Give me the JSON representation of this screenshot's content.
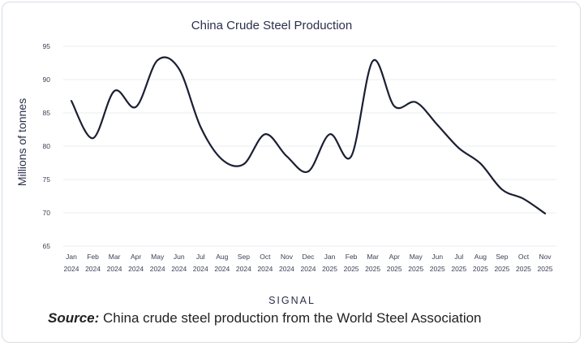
{
  "chart_data": {
    "type": "line",
    "title": "China Crude Steel Production",
    "ylabel": "Millions of tonnes",
    "xlabel": "",
    "ylim": [
      65,
      95
    ],
    "yticks": [
      65,
      70,
      75,
      80,
      85,
      90,
      95
    ],
    "grid": true,
    "categories": [
      {
        "month": "Jan",
        "year": "2024"
      },
      {
        "month": "Feb",
        "year": "2024"
      },
      {
        "month": "Mar",
        "year": "2024"
      },
      {
        "month": "Apr",
        "year": "2024"
      },
      {
        "month": "May",
        "year": "2024"
      },
      {
        "month": "Jun",
        "year": "2024"
      },
      {
        "month": "Jul",
        "year": "2024"
      },
      {
        "month": "Aug",
        "year": "2024"
      },
      {
        "month": "Sep",
        "year": "2024"
      },
      {
        "month": "Oct",
        "year": "2024"
      },
      {
        "month": "Nov",
        "year": "2024"
      },
      {
        "month": "Dec",
        "year": "2024"
      },
      {
        "month": "Jan",
        "year": "2025"
      },
      {
        "month": "Feb",
        "year": "2025"
      },
      {
        "month": "Mar",
        "year": "2025"
      },
      {
        "month": "Apr",
        "year": "2025"
      },
      {
        "month": "May",
        "year": "2025"
      },
      {
        "month": "Jun",
        "year": "2025"
      },
      {
        "month": "Jul",
        "year": "2025"
      },
      {
        "month": "Aug",
        "year": "2025"
      },
      {
        "month": "Sep",
        "year": "2025"
      },
      {
        "month": "Oct",
        "year": "2025"
      },
      {
        "month": "Nov",
        "year": "2025"
      }
    ],
    "series": [
      {
        "values": [
          86.8,
          81.2,
          88.3,
          85.9,
          92.9,
          91.6,
          82.9,
          78.0,
          77.3,
          81.8,
          78.5,
          76.2,
          81.8,
          78.5,
          92.8,
          86.0,
          86.6,
          83.2,
          79.7,
          77.4,
          73.5,
          72.1,
          69.9
        ],
        "color": "#1b1f33"
      }
    ]
  },
  "brand": {
    "name": "SIGNAL"
  },
  "source": {
    "label": "Source:",
    "text": " China crude steel production from the World Steel Association"
  }
}
